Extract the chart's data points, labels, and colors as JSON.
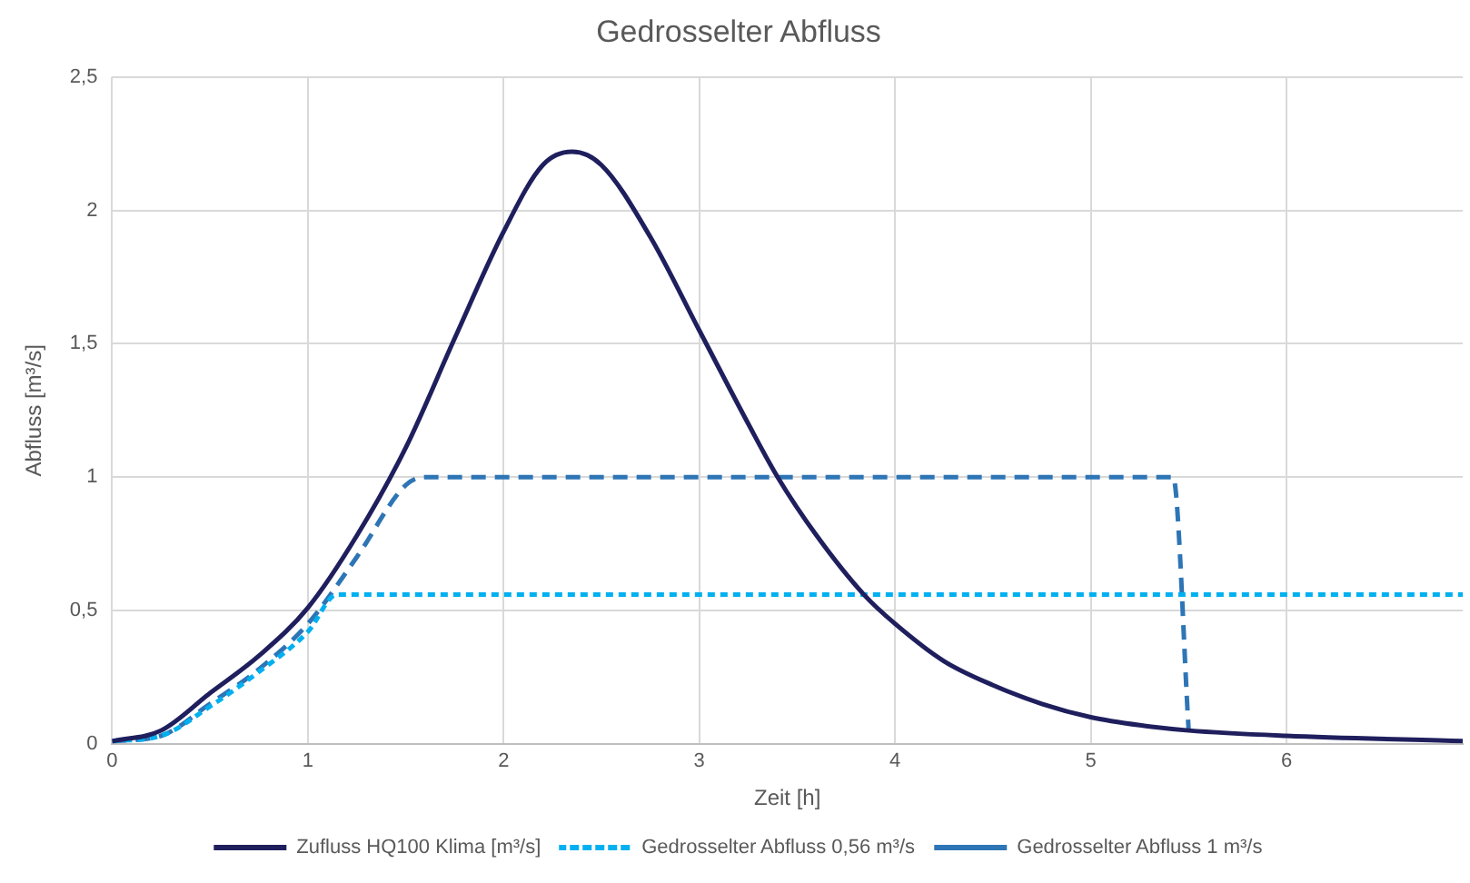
{
  "chart_data": {
    "type": "line",
    "title": "Gedrosselter Abfluss",
    "xlabel": "Zeit [h]",
    "ylabel": "Abfluss [m³/s]",
    "xlim": [
      0,
      6.9
    ],
    "xticks": [
      0,
      1,
      2,
      3,
      4,
      5,
      6
    ],
    "ylim": [
      0,
      2.5
    ],
    "yticks": [
      0,
      {
        "value": 0.5,
        "label": "0,5"
      },
      1,
      {
        "value": 1.5,
        "label": "1,5"
      },
      2,
      {
        "value": 2.5,
        "label": "2,5"
      }
    ],
    "grid": true,
    "legend": "bottom",
    "marker": "none",
    "series": [
      {
        "name": "Zufluss HQ100 Klima [m³/s]",
        "color": "#1f1f5e",
        "line_style": "solid",
        "x": [
          0,
          0.25,
          0.5,
          0.75,
          1,
          1.25,
          1.5,
          1.75,
          2,
          2.2,
          2.35,
          2.5,
          2.75,
          3,
          3.25,
          3.4,
          3.6,
          3.84,
          4,
          4.25,
          4.5,
          4.75,
          5,
          5.25,
          5.5,
          6,
          6.9
        ],
        "values": [
          0.01,
          0.05,
          0.19,
          0.33,
          0.51,
          0.78,
          1.11,
          1.52,
          1.92,
          2.17,
          2.22,
          2.17,
          1.9,
          1.55,
          1.2,
          1.0,
          0.78,
          0.56,
          0.45,
          0.31,
          0.22,
          0.15,
          0.1,
          0.07,
          0.05,
          0.03,
          0.01
        ]
      },
      {
        "name": "Gedrosselter Abfluss 0,56 m³/s",
        "color": "#00b0f0",
        "line_style": "dotted",
        "x": [
          0,
          0.25,
          0.5,
          0.75,
          1,
          1.15,
          6.9
        ],
        "values": [
          0.01,
          0.03,
          0.14,
          0.27,
          0.42,
          0.56,
          0.56
        ]
      },
      {
        "name": "Gedrosselter Abfluss 1 m³/s",
        "color": "#2e75b6",
        "line_style": "dashed",
        "x": [
          0,
          0.25,
          0.5,
          0.75,
          1,
          1.25,
          1.5,
          1.6,
          5.42,
          5.5
        ],
        "values": [
          0.01,
          0.03,
          0.15,
          0.28,
          0.45,
          0.7,
          0.97,
          1.0,
          1.0,
          0.05
        ]
      }
    ]
  }
}
